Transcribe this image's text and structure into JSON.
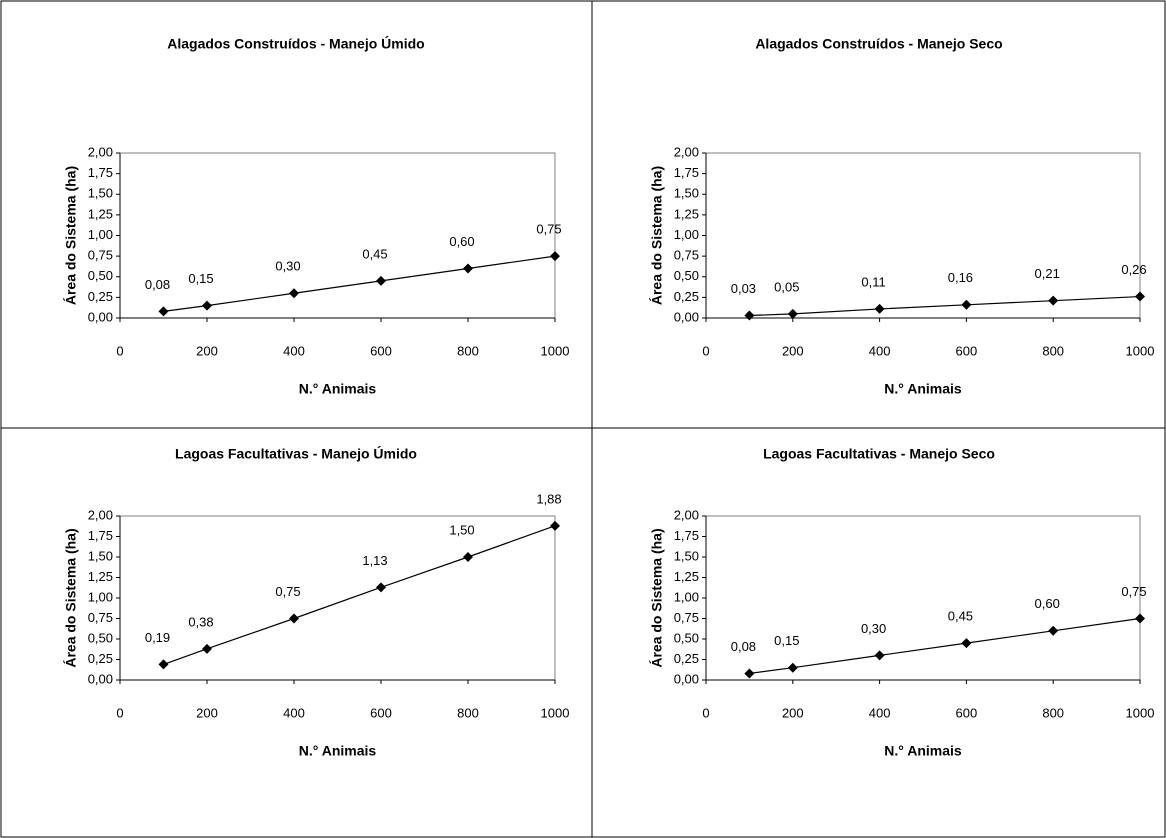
{
  "chart_data": [
    {
      "type": "line",
      "title": "Alagados Construídos - Manejo Úmido",
      "x_label": "N.° Animais",
      "y_label": "Área do Sistema (ha)",
      "x": [
        100,
        200,
        400,
        600,
        800,
        1000
      ],
      "values": [
        0.08,
        0.15,
        0.3,
        0.45,
        0.6,
        0.75
      ],
      "value_labels": [
        "0,08",
        "0,15",
        "0,30",
        "0,45",
        "0,60",
        "0,75"
      ],
      "color": "#000000",
      "xlim": [
        0,
        1000
      ],
      "xticks": [
        0,
        200,
        400,
        600,
        800,
        1000
      ],
      "ylim": [
        0,
        2
      ],
      "yticks": [
        {
          "value": 0,
          "label": "0,00"
        },
        {
          "value": 0.25,
          "label": "0,25"
        },
        {
          "value": 0.5,
          "label": "0,50"
        },
        {
          "value": 0.75,
          "label": "0,75"
        },
        {
          "value": 1,
          "label": "1,00"
        },
        {
          "value": 1.25,
          "label": "1,25"
        },
        {
          "value": 1.5,
          "label": "1,50"
        },
        {
          "value": 1.75,
          "label": "1,75"
        },
        {
          "value": 2,
          "label": "2,00"
        }
      ]
    },
    {
      "type": "line",
      "title": "Alagados Construídos - Manejo Seco",
      "x_label": "N.° Animais",
      "y_label": "Área do Sistema (ha)",
      "x": [
        100,
        200,
        400,
        600,
        800,
        1000
      ],
      "values": [
        0.03,
        0.05,
        0.11,
        0.16,
        0.21,
        0.26
      ],
      "value_labels": [
        "0,03",
        "0,05",
        "0,11",
        "0,16",
        "0,21",
        "0,26"
      ],
      "color": "#000000",
      "xlim": [
        0,
        1000
      ],
      "xticks": [
        0,
        200,
        400,
        600,
        800,
        1000
      ],
      "ylim": [
        0,
        2
      ],
      "yticks": [
        {
          "value": 0,
          "label": "0,00"
        },
        {
          "value": 0.25,
          "label": "0,25"
        },
        {
          "value": 0.5,
          "label": "0,50"
        },
        {
          "value": 0.75,
          "label": "0,75"
        },
        {
          "value": 1,
          "label": "1,00"
        },
        {
          "value": 1.25,
          "label": "1,25"
        },
        {
          "value": 1.5,
          "label": "1,50"
        },
        {
          "value": 1.75,
          "label": "1,75"
        },
        {
          "value": 2,
          "label": "2,00"
        }
      ]
    },
    {
      "type": "line",
      "title": "Lagoas Facultativas - Manejo Úmido",
      "x_label": "N.° Animais",
      "y_label": "Área do Sistema (ha)",
      "x": [
        100,
        200,
        400,
        600,
        800,
        1000
      ],
      "values": [
        0.19,
        0.38,
        0.75,
        1.13,
        1.5,
        1.88
      ],
      "value_labels": [
        "0,19",
        "0,38",
        "0,75",
        "1,13",
        "1,50",
        "1,88"
      ],
      "color": "#000000",
      "xlim": [
        0,
        1000
      ],
      "xticks": [
        0,
        200,
        400,
        600,
        800,
        1000
      ],
      "ylim": [
        0,
        2
      ],
      "yticks": [
        {
          "value": 0,
          "label": "0,00"
        },
        {
          "value": 0.25,
          "label": "0,25"
        },
        {
          "value": 0.5,
          "label": "0,50"
        },
        {
          "value": 0.75,
          "label": "0,75"
        },
        {
          "value": 1,
          "label": "1,00"
        },
        {
          "value": 1.25,
          "label": "1,25"
        },
        {
          "value": 1.5,
          "label": "1,50"
        },
        {
          "value": 1.75,
          "label": "1,75"
        },
        {
          "value": 2,
          "label": "2,00"
        }
      ]
    },
    {
      "type": "line",
      "title": "Lagoas Facultativas - Manejo Seco",
      "x_label": "N.° Animais",
      "y_label": "Área do Sistema (ha)",
      "x": [
        100,
        200,
        400,
        600,
        800,
        1000
      ],
      "values": [
        0.08,
        0.15,
        0.3,
        0.45,
        0.6,
        0.75
      ],
      "value_labels": [
        "0,08",
        "0,15",
        "0,30",
        "0,45",
        "0,60",
        "0,75"
      ],
      "color": "#000000",
      "xlim": [
        0,
        1000
      ],
      "xticks": [
        0,
        200,
        400,
        600,
        800,
        1000
      ],
      "ylim": [
        0,
        2
      ],
      "yticks": [
        {
          "value": 0,
          "label": "0,00"
        },
        {
          "value": 0.25,
          "label": "0,25"
        },
        {
          "value": 0.5,
          "label": "0,50"
        },
        {
          "value": 0.75,
          "label": "0,75"
        },
        {
          "value": 1,
          "label": "1,00"
        },
        {
          "value": 1.25,
          "label": "1,25"
        },
        {
          "value": 1.5,
          "label": "1,50"
        },
        {
          "value": 1.75,
          "label": "1,75"
        },
        {
          "value": 2,
          "label": "2,00"
        }
      ]
    }
  ]
}
